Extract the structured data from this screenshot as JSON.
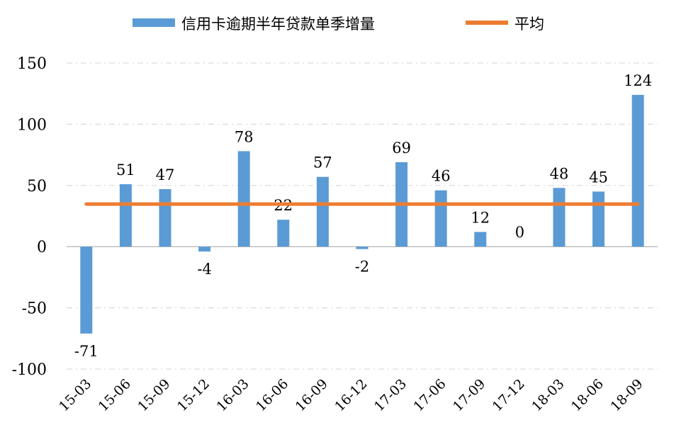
{
  "chart_data": {
    "type": "bar",
    "categories": [
      "15-03",
      "15-06",
      "15-09",
      "15-12",
      "16-03",
      "16-06",
      "16-09",
      "16-12",
      "17-03",
      "17-06",
      "17-09",
      "17-12",
      "18-03",
      "18-06",
      "18-09"
    ],
    "series": [
      {
        "name": "信用卡逾期半年贷款单季增量",
        "type": "bar",
        "color": "#5B9BD5",
        "values": [
          -71,
          51,
          47,
          -4,
          78,
          22,
          57,
          -2,
          69,
          46,
          12,
          0,
          48,
          45,
          124
        ]
      },
      {
        "name": "平均",
        "type": "line",
        "color": "#ED7D31",
        "value": 34.8
      }
    ],
    "data_labels": [
      "-71",
      "51",
      "47",
      "-4",
      "78",
      "22",
      "57",
      "-2",
      "69",
      "46",
      "12",
      "0",
      "48",
      "45",
      "124"
    ],
    "y_ticks": [
      "150",
      "100",
      "50",
      "0",
      "-50",
      "-100"
    ],
    "ylim": [
      -100,
      150
    ],
    "grid": true,
    "legend_position": "top-center"
  }
}
